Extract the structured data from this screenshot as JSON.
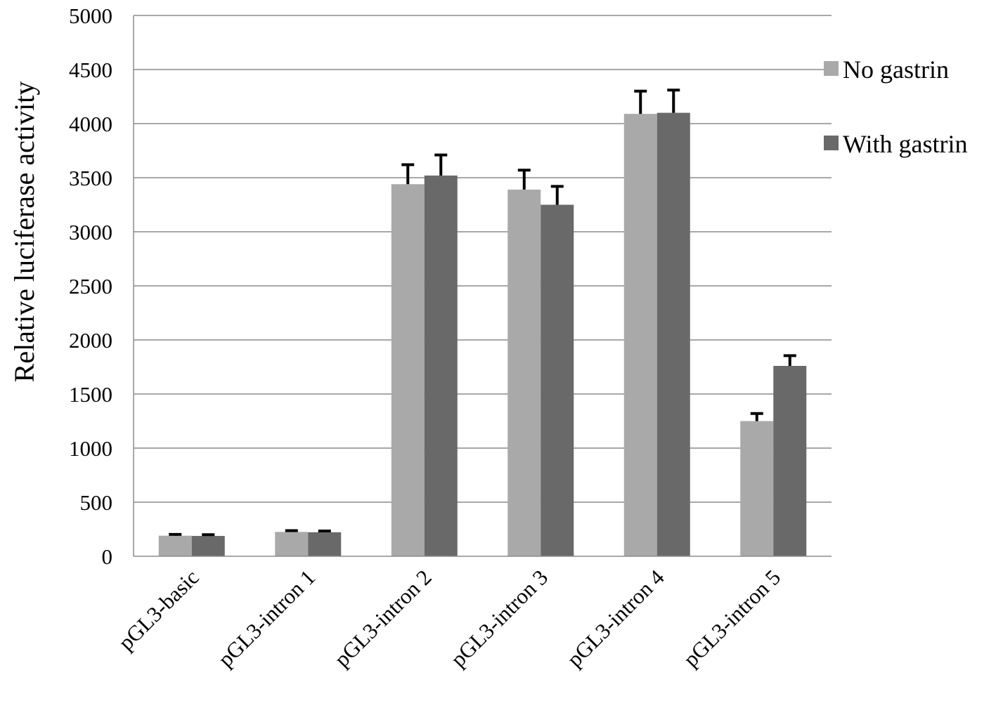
{
  "chart_data": {
    "type": "bar",
    "title": "",
    "xlabel": "",
    "ylabel": "Relative luciferase activity",
    "ylim": [
      0,
      5000
    ],
    "yticks": [
      0,
      500,
      1000,
      1500,
      2000,
      2500,
      3000,
      3500,
      4000,
      4500,
      5000
    ],
    "grid": true,
    "legend_position": "right",
    "categories": [
      "pGL3-basic",
      "pGL3-intron 1",
      "pGL3-intron 2",
      "pGL3-intron 3",
      "pGL3-intron 4",
      "pGL3-intron 5"
    ],
    "series": [
      {
        "name": "No gastrin",
        "color": "#a9a9a9",
        "values": [
          190,
          225,
          3440,
          3390,
          4090,
          1250
        ],
        "errors": [
          12,
          12,
          180,
          180,
          210,
          70
        ]
      },
      {
        "name": "With gastrin",
        "color": "#696969",
        "values": [
          188,
          222,
          3520,
          3250,
          4100,
          1760
        ],
        "errors": [
          12,
          12,
          190,
          170,
          210,
          95
        ]
      }
    ]
  }
}
